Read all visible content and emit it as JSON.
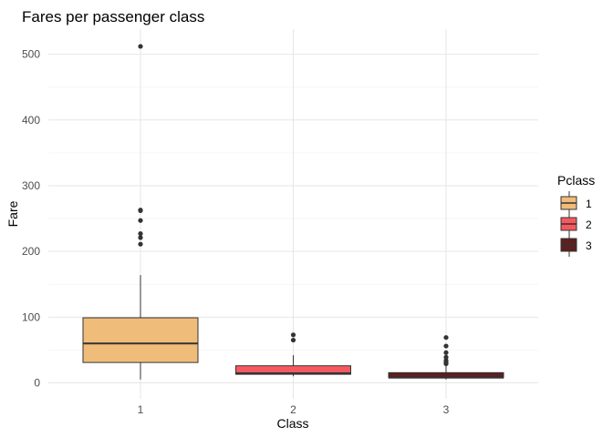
{
  "chart_data": {
    "type": "boxplot",
    "title": "Fares per passenger class",
    "xlabel": "Class",
    "ylabel": "Fare",
    "categories": [
      "1",
      "2",
      "3"
    ],
    "ylim": [
      -27,
      527
    ],
    "yticks": [
      0,
      100,
      200,
      300,
      400,
      500
    ],
    "grid": true,
    "legend": {
      "title": "Pclass",
      "placement": "right",
      "entries": [
        {
          "label": "1",
          "color": "#f0bc7a"
        },
        {
          "label": "2",
          "color": "#f5595f"
        },
        {
          "label": "3",
          "color": "#5e1f1f"
        }
      ]
    },
    "boxes": [
      {
        "category": "1",
        "color": "#f0bc7a",
        "whisker_low": 5,
        "q1": 31,
        "median": 60,
        "q3": 99,
        "whisker_high": 164,
        "outliers": [
          211,
          221,
          227,
          247,
          262,
          263,
          512
        ]
      },
      {
        "category": "2",
        "color": "#f5595f",
        "whisker_low": 10,
        "q1": 13,
        "median": 14.5,
        "q3": 26,
        "whisker_high": 42,
        "outliers": [
          65,
          73
        ]
      },
      {
        "category": "3",
        "color": "#5e1f1f",
        "whisker_low": 5,
        "q1": 7.8,
        "median": 8.05,
        "q3": 15.5,
        "whisker_high": 27,
        "outliers": [
          29,
          31,
          34,
          39,
          46,
          56,
          69
        ]
      }
    ]
  }
}
